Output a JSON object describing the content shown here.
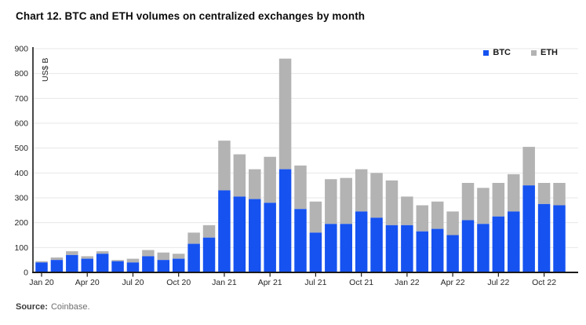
{
  "title": "Chart 12. BTC and ETH volumes on centralized exchanges by month",
  "source": {
    "label": "Source:",
    "text": "Coinbase."
  },
  "colors": {
    "btc": "#1652f0",
    "eth": "#b3b3b3",
    "axis": "#1a1a1a",
    "grid": "#e7e7e7"
  },
  "chart_data": {
    "type": "bar",
    "stacked": true,
    "title": "Chart 12. BTC and ETH volumes on centralized exchanges by month",
    "xlabel": "",
    "ylabel": "US$ B",
    "ylim": [
      0,
      900
    ],
    "ytick_step": 100,
    "grid": true,
    "legend_position": "top-right",
    "categories": [
      "Jan 20",
      "Feb 20",
      "Mar 20",
      "Apr 20",
      "May 20",
      "Jun 20",
      "Jul 20",
      "Aug 20",
      "Sep 20",
      "Oct 20",
      "Nov 20",
      "Dec 20",
      "Jan 21",
      "Feb 21",
      "Mar 21",
      "Apr 21",
      "May 21",
      "Jun 21",
      "Jul 21",
      "Aug 21",
      "Sep 21",
      "Oct 21",
      "Nov 21",
      "Dec 21",
      "Jan 22",
      "Feb 22",
      "Mar 22",
      "Apr 22",
      "May 22",
      "Jun 22",
      "Jul 22",
      "Aug 22",
      "Sep 22",
      "Oct 22",
      "Nov 22"
    ],
    "x_tick_labels": [
      "Jan 20",
      "Apr 20",
      "Jul 20",
      "Oct 20",
      "Jan 21",
      "Apr 21",
      "Jul 21",
      "Oct 21",
      "Jan 22",
      "Apr 22",
      "Jul 22",
      "Oct 22"
    ],
    "x_tick_every": 3,
    "series": [
      {
        "name": "BTC",
        "color": "#1652f0",
        "values": [
          40,
          50,
          70,
          55,
          75,
          45,
          40,
          65,
          50,
          55,
          115,
          140,
          330,
          305,
          295,
          280,
          415,
          255,
          160,
          195,
          195,
          245,
          220,
          190,
          190,
          165,
          175,
          150,
          210,
          195,
          225,
          245,
          350,
          275,
          270
        ]
      },
      {
        "name": "ETH",
        "color": "#b3b3b3",
        "values": [
          5,
          10,
          15,
          10,
          10,
          5,
          15,
          25,
          30,
          20,
          45,
          50,
          200,
          170,
          120,
          185,
          445,
          175,
          125,
          180,
          185,
          170,
          180,
          180,
          115,
          105,
          110,
          95,
          150,
          145,
          135,
          150,
          155,
          85,
          90
        ]
      }
    ]
  }
}
